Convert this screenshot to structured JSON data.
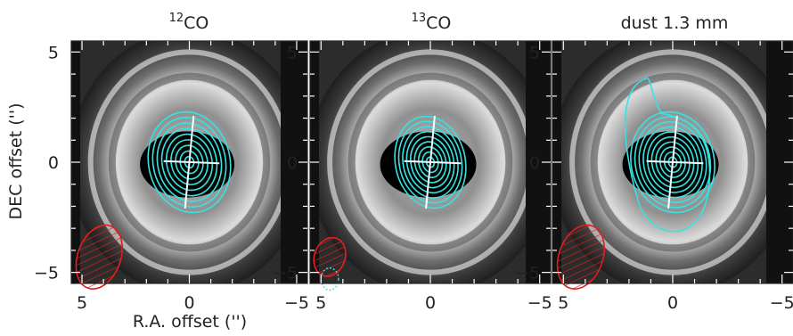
{
  "figure": {
    "ylabel": "DEC offset ('')",
    "xlabel": "R.A. offset ('')",
    "tick_labels": {
      "neg5": "−5",
      "zero": "0",
      "pos5": "5"
    }
  },
  "chart_data": [
    {
      "type": "heatmap",
      "title": {
        "superscript": "12",
        "main": "CO"
      },
      "xlim": [
        5.5,
        -5.5
      ],
      "ylim": [
        -5.5,
        5.5
      ],
      "xticks": [
        5,
        0,
        -5
      ],
      "yticks": [
        5,
        0,
        -5
      ],
      "contour_color": "#35e3e3",
      "contour_levels": 9,
      "beam": {
        "x": 4.2,
        "y": -4.3,
        "major": 1.5,
        "minor": 1.0,
        "pa": 20,
        "color": "#e02020",
        "hatched": true
      }
    },
    {
      "type": "heatmap",
      "title": {
        "superscript": "13",
        "main": "CO"
      },
      "xlim": [
        5.5,
        -5.5
      ],
      "ylim": [
        -5.5,
        5.5
      ],
      "xticks": [
        5,
        0,
        -5
      ],
      "yticks": [
        5,
        0,
        -5
      ],
      "contour_color": "#35e3e3",
      "contour_levels": 9,
      "beam": {
        "x": 4.6,
        "y": -4.3,
        "major": 0.9,
        "minor": 0.7,
        "pa": 20,
        "color": "#e02020",
        "hatched": true
      }
    },
    {
      "type": "heatmap",
      "title": {
        "superscript": "",
        "main": "dust 1.3 mm"
      },
      "xlim": [
        5.5,
        -5.5
      ],
      "ylim": [
        -5.5,
        5.5
      ],
      "xticks": [
        5,
        0,
        -5
      ],
      "yticks": [
        5,
        0,
        -5
      ],
      "contour_color": "#35e3e3",
      "contour_levels": 10,
      "beam": {
        "x": 4.2,
        "y": -4.3,
        "major": 1.5,
        "minor": 1.0,
        "pa": 20,
        "color": "#e02020",
        "hatched": true
      }
    }
  ]
}
